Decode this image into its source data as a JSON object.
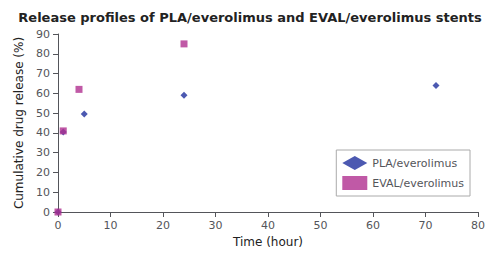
{
  "chart_data": {
    "type": "scatter",
    "title": "Release profiles of PLA/everolimus and EVAL/everolimus stents",
    "xlabel": "Time (hour)",
    "ylabel": "Cumulative drug release (%)",
    "series": [
      {
        "name": "PLA/everolimus",
        "color": "#1f2f9e",
        "marker": "diamond",
        "x": [
          0,
          1,
          5,
          24,
          72
        ],
        "values": [
          0,
          40.5,
          49.5,
          59,
          64
        ]
      },
      {
        "name": "EVAL/everolimus",
        "color": "#b03090",
        "marker": "square",
        "x": [
          0,
          1,
          4,
          24
        ],
        "values": [
          0,
          41,
          62,
          85
        ]
      }
    ],
    "xlim": [
      0,
      80
    ],
    "ylim": [
      0,
      90
    ],
    "xticks": [
      0,
      10,
      20,
      30,
      40,
      50,
      60,
      70,
      80
    ],
    "yticks": [
      0,
      10,
      20,
      30,
      40,
      50,
      60,
      70,
      80,
      90
    ],
    "grid": false,
    "legend": "lower right"
  }
}
